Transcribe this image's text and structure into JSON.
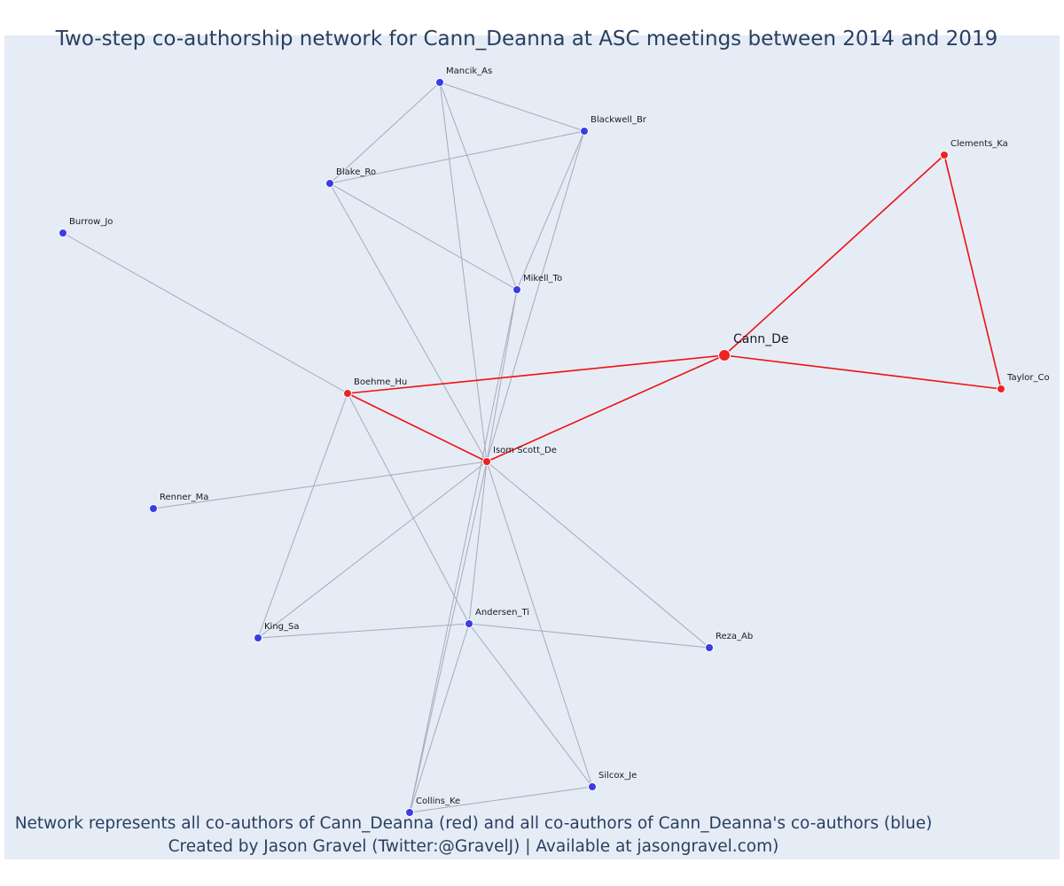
{
  "title": "Two-step co-authorship network for Cann_Deanna at ASC meetings between 2014 and 2019",
  "footer": {
    "line1": "Network represents all co-authors of Cann_Deanna (red) and all co-authors of Cann_Deanna's co-authors (blue)",
    "line2": "Created by Jason Gravel (Twitter:@GravelJ) | Available at jasongravel.com)"
  },
  "colors": {
    "plot_bg": "#e5ecf6",
    "red_node": "#ee2222",
    "blue_node": "#3b3be8",
    "red_edge": "#ee1111",
    "gray_edge": "#a8aab8",
    "text": "#2a3f5f"
  },
  "network": {
    "nodes": [
      {
        "id": "Cann_De",
        "group": "ego"
      },
      {
        "id": "Clements_Ka",
        "group": "red"
      },
      {
        "id": "Taylor_Co",
        "group": "red"
      },
      {
        "id": "Boehme_Hu",
        "group": "red"
      },
      {
        "id": "Isom Scott_De",
        "group": "red"
      },
      {
        "id": "Mancik_As",
        "group": "blue"
      },
      {
        "id": "Blackwell_Br",
        "group": "blue"
      },
      {
        "id": "Blake_Ro",
        "group": "blue"
      },
      {
        "id": "Burrow_Jo",
        "group": "blue"
      },
      {
        "id": "Mikell_To",
        "group": "blue"
      },
      {
        "id": "Renner_Ma",
        "group": "blue"
      },
      {
        "id": "King_Sa",
        "group": "blue"
      },
      {
        "id": "Andersen_Ti",
        "group": "blue"
      },
      {
        "id": "Reza_Ab",
        "group": "blue"
      },
      {
        "id": "Silcox_Je",
        "group": "blue"
      },
      {
        "id": "Collins_Ke",
        "group": "blue"
      }
    ],
    "edges": [
      {
        "source": "Cann_De",
        "target": "Clements_Ka",
        "type": "red"
      },
      {
        "source": "Cann_De",
        "target": "Taylor_Co",
        "type": "red"
      },
      {
        "source": "Clements_Ka",
        "target": "Taylor_Co",
        "type": "red"
      },
      {
        "source": "Cann_De",
        "target": "Boehme_Hu",
        "type": "red"
      },
      {
        "source": "Cann_De",
        "target": "Isom Scott_De",
        "type": "red"
      },
      {
        "source": "Boehme_Hu",
        "target": "Isom Scott_De",
        "type": "red"
      },
      {
        "source": "Mancik_As",
        "target": "Blackwell_Br",
        "type": "gray"
      },
      {
        "source": "Mancik_As",
        "target": "Blake_Ro",
        "type": "gray"
      },
      {
        "source": "Mancik_As",
        "target": "Mikell_To",
        "type": "gray"
      },
      {
        "source": "Mancik_As",
        "target": "Isom Scott_De",
        "type": "gray"
      },
      {
        "source": "Blackwell_Br",
        "target": "Blake_Ro",
        "type": "gray"
      },
      {
        "source": "Blackwell_Br",
        "target": "Isom Scott_De",
        "type": "gray"
      },
      {
        "source": "Blackwell_Br",
        "target": "Mikell_To",
        "type": "gray"
      },
      {
        "source": "Blake_Ro",
        "target": "Mikell_To",
        "type": "gray"
      },
      {
        "source": "Blake_Ro",
        "target": "Isom Scott_De",
        "type": "gray"
      },
      {
        "source": "Mikell_To",
        "target": "Isom Scott_De",
        "type": "gray"
      },
      {
        "source": "Mikell_To",
        "target": "Collins_Ke",
        "type": "gray"
      },
      {
        "source": "Burrow_Jo",
        "target": "Boehme_Hu",
        "type": "gray"
      },
      {
        "source": "Renner_Ma",
        "target": "Isom Scott_De",
        "type": "gray"
      },
      {
        "source": "Boehme_Hu",
        "target": "King_Sa",
        "type": "gray"
      },
      {
        "source": "Boehme_Hu",
        "target": "Andersen_Ti",
        "type": "gray"
      },
      {
        "source": "Isom Scott_De",
        "target": "King_Sa",
        "type": "gray"
      },
      {
        "source": "Isom Scott_De",
        "target": "Andersen_Ti",
        "type": "gray"
      },
      {
        "source": "Isom Scott_De",
        "target": "Reza_Ab",
        "type": "gray"
      },
      {
        "source": "Isom Scott_De",
        "target": "Silcox_Je",
        "type": "gray"
      },
      {
        "source": "Isom Scott_De",
        "target": "Collins_Ke",
        "type": "gray"
      },
      {
        "source": "King_Sa",
        "target": "Andersen_Ti",
        "type": "gray"
      },
      {
        "source": "Andersen_Ti",
        "target": "Reza_Ab",
        "type": "gray"
      },
      {
        "source": "Andersen_Ti",
        "target": "Silcox_Je",
        "type": "gray"
      },
      {
        "source": "Andersen_Ti",
        "target": "Collins_Ke",
        "type": "gray"
      },
      {
        "source": "Collins_Ke",
        "target": "Silcox_Je",
        "type": "gray"
      }
    ]
  }
}
